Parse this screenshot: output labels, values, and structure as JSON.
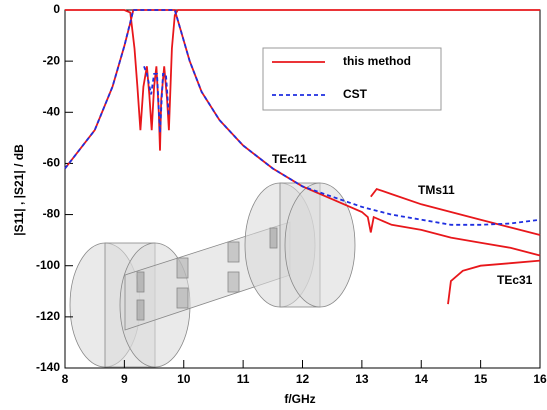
{
  "chart_data": {
    "type": "line",
    "x_label": "f/GHz",
    "y_label": "|S11| , |S21| / dB",
    "annotations": [
      "TEc11",
      "TMs11",
      "TEc31"
    ],
    "xlim": [
      8,
      16
    ],
    "xticks": [
      8,
      9,
      10,
      11,
      12,
      13,
      14,
      15,
      16
    ],
    "ylim": [
      -140,
      0
    ],
    "yticks": [
      -140,
      -120,
      -100,
      -80,
      -60,
      -40,
      -20,
      0
    ],
    "series": [
      {
        "name": "this method",
        "color": "#e8171b",
        "dash": false,
        "x": [
          8,
          8.5,
          8.8,
          9.0,
          9.1,
          9.15,
          9.3,
          9.6,
          9.85,
          9.95,
          10.1,
          10.3,
          10.6,
          11,
          11.5,
          12,
          12.5,
          13,
          13.1,
          13.15,
          13.2,
          13.5,
          14,
          14.5,
          15,
          15.5,
          16,
          null,
          8,
          9.0,
          9.1,
          9.17,
          9.22,
          9.27,
          9.32,
          9.38,
          9.42,
          9.46,
          9.5,
          9.54,
          9.58,
          9.6,
          9.62,
          9.67,
          9.72,
          9.75,
          9.8,
          9.85,
          9.9,
          16,
          null,
          13.15,
          13.25,
          13.5,
          14,
          14.5,
          15,
          15.5,
          16,
          null,
          14.45,
          14.5,
          14.7,
          15,
          15.5,
          16
        ],
        "values": [
          -62,
          -47,
          -30,
          -14,
          -5,
          0,
          0,
          0,
          0,
          -8,
          -20,
          -32,
          -43,
          -53,
          -62,
          -69,
          -74,
          -79,
          -81,
          -87,
          -81,
          -84,
          -86,
          -89,
          -91,
          -93,
          -96,
          null,
          0,
          0,
          -1,
          -15,
          -30,
          -47,
          -30,
          -22,
          -33,
          -47,
          -30,
          -22,
          -40,
          -55,
          -35,
          -22,
          -35,
          -47,
          -15,
          -2,
          0,
          0,
          null,
          -73,
          -70,
          -72,
          -76,
          -79,
          -82,
          -85,
          -88,
          null,
          -115,
          -106,
          -102,
          -100,
          -99,
          -98
        ]
      },
      {
        "name": "CST",
        "color": "#1f2fe0",
        "dash": true,
        "x": [
          8,
          8.5,
          8.8,
          9.0,
          9.15,
          9.85,
          9.95,
          10.1,
          10.3,
          10.6,
          11,
          11.5,
          12,
          12.5,
          13,
          13.5,
          14,
          14.5,
          15,
          15.5,
          16,
          null,
          9.33,
          9.38,
          9.45,
          9.5,
          9.55,
          9.6,
          9.65,
          9.7,
          9.75
        ],
        "values": [
          -62,
          -47,
          -30,
          -14,
          0,
          0,
          -8,
          -20,
          -32,
          -43,
          -53,
          -62,
          -69,
          -73,
          -77,
          -80,
          -82,
          -84,
          -84,
          -83.5,
          -82,
          null,
          -22,
          -25,
          -33,
          -25,
          -25,
          -48,
          -25,
          -25,
          -42
        ]
      }
    ]
  }
}
